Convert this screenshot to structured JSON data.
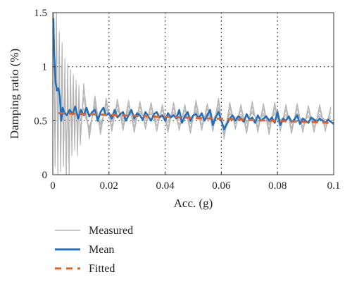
{
  "chart_data": {
    "type": "line",
    "xlabel": "Acc. (g)",
    "ylabel": "Damping ratio (%)",
    "xlim": [
      0,
      0.1
    ],
    "ylim": [
      0,
      1.5
    ],
    "x_ticks": [
      0,
      0.02,
      0.04,
      0.06,
      0.08,
      0.1
    ],
    "x_tick_labels": [
      "0",
      "0.02",
      "0.04",
      "0.06",
      "0.08",
      "0.1"
    ],
    "y_ticks": [
      0,
      0.5,
      1,
      1.5
    ],
    "y_tick_labels": [
      "0",
      "0.5",
      "1",
      "1.5"
    ],
    "grid": "dotted",
    "legend_position": "below-left",
    "series": [
      {
        "name": "Measured",
        "color": "#b4b4b4",
        "style": "solid",
        "x": [
          0.0003,
          0.0008,
          0.0013,
          0.0018,
          0.0023,
          0.0028,
          0.0033,
          0.0038,
          0.0043,
          0.0048,
          0.0053,
          0.0058,
          0.0063,
          0.0068,
          0.0073,
          0.0078,
          0.0083,
          0.0088,
          0.0093,
          0.0098,
          0.011,
          0.013,
          0.015,
          0.017,
          0.019,
          0.021,
          0.023,
          0.025,
          0.027,
          0.029,
          0.031,
          0.033,
          0.035,
          0.037,
          0.039,
          0.041,
          0.043,
          0.045,
          0.047,
          0.049,
          0.051,
          0.053,
          0.055,
          0.057,
          0.059,
          0.061,
          0.063,
          0.065,
          0.067,
          0.069,
          0.071,
          0.073,
          0.075,
          0.077,
          0.079,
          0.081,
          0.083,
          0.085,
          0.087,
          0.089,
          0.091,
          0.093,
          0.095,
          0.097,
          0.099
        ],
        "y": [
          1.45,
          0.2,
          1.4,
          0.1,
          1.2,
          0.15,
          1.1,
          0.2,
          0.95,
          0.05,
          0.9,
          0.1,
          0.85,
          0.3,
          0.8,
          0.35,
          0.75,
          0.3,
          0.7,
          0.4,
          0.72,
          0.38,
          0.68,
          0.42,
          0.66,
          0.45,
          0.65,
          0.46,
          0.64,
          0.44,
          0.63,
          0.47,
          0.62,
          0.45,
          0.6,
          0.44,
          0.62,
          0.46,
          0.6,
          0.43,
          0.64,
          0.46,
          0.61,
          0.45,
          0.66,
          0.38,
          0.62,
          0.47,
          0.6,
          0.43,
          0.63,
          0.44,
          0.61,
          0.42,
          0.62,
          0.45,
          0.6,
          0.43,
          0.61,
          0.44,
          0.59,
          0.44,
          0.6,
          0.45,
          0.58
        ]
      },
      {
        "name": "Mean",
        "color": "#1f6fc0",
        "style": "solid",
        "x": [
          0.0002,
          0.0005,
          0.001,
          0.0015,
          0.002,
          0.0025,
          0.003,
          0.0035,
          0.004,
          0.005,
          0.006,
          0.007,
          0.008,
          0.009,
          0.01,
          0.011,
          0.012,
          0.013,
          0.014,
          0.015,
          0.016,
          0.017,
          0.018,
          0.019,
          0.02,
          0.021,
          0.022,
          0.023,
          0.024,
          0.025,
          0.026,
          0.027,
          0.028,
          0.029,
          0.03,
          0.031,
          0.032,
          0.033,
          0.034,
          0.035,
          0.036,
          0.037,
          0.038,
          0.039,
          0.04,
          0.041,
          0.042,
          0.043,
          0.044,
          0.045,
          0.046,
          0.047,
          0.048,
          0.049,
          0.05,
          0.051,
          0.052,
          0.053,
          0.054,
          0.055,
          0.056,
          0.057,
          0.058,
          0.059,
          0.06,
          0.061,
          0.062,
          0.063,
          0.064,
          0.065,
          0.066,
          0.067,
          0.068,
          0.069,
          0.07,
          0.071,
          0.072,
          0.073,
          0.074,
          0.075,
          0.076,
          0.077,
          0.078,
          0.079,
          0.08,
          0.081,
          0.082,
          0.083,
          0.084,
          0.085,
          0.086,
          0.087,
          0.088,
          0.089,
          0.09,
          0.091,
          0.092,
          0.093,
          0.094,
          0.095,
          0.096,
          0.097,
          0.098,
          0.099,
          0.1
        ],
        "y": [
          1.45,
          1.1,
          0.85,
          0.78,
          0.8,
          0.72,
          0.5,
          0.62,
          0.58,
          0.55,
          0.6,
          0.56,
          0.63,
          0.52,
          0.6,
          0.55,
          0.62,
          0.54,
          0.58,
          0.6,
          0.5,
          0.58,
          0.62,
          0.55,
          0.57,
          0.52,
          0.6,
          0.53,
          0.56,
          0.58,
          0.5,
          0.55,
          0.6,
          0.52,
          0.57,
          0.55,
          0.51,
          0.58,
          0.54,
          0.5,
          0.56,
          0.58,
          0.53,
          0.55,
          0.5,
          0.57,
          0.53,
          0.55,
          0.52,
          0.6,
          0.48,
          0.54,
          0.58,
          0.5,
          0.55,
          0.56,
          0.52,
          0.57,
          0.5,
          0.55,
          0.6,
          0.46,
          0.53,
          0.58,
          0.5,
          0.42,
          0.47,
          0.52,
          0.55,
          0.5,
          0.54,
          0.52,
          0.49,
          0.56,
          0.51,
          0.53,
          0.48,
          0.55,
          0.5,
          0.52,
          0.54,
          0.5,
          0.53,
          0.48,
          0.58,
          0.46,
          0.52,
          0.5,
          0.54,
          0.49,
          0.51,
          0.55,
          0.47,
          0.52,
          0.5,
          0.48,
          0.53,
          0.51,
          0.49,
          0.52,
          0.5,
          0.48,
          0.51,
          0.49,
          0.47
        ]
      },
      {
        "name": "Fitted",
        "color": "#e0622a",
        "style": "dashed",
        "x": [
          0.002,
          0.1
        ],
        "y": [
          0.57,
          0.48
        ]
      }
    ]
  }
}
